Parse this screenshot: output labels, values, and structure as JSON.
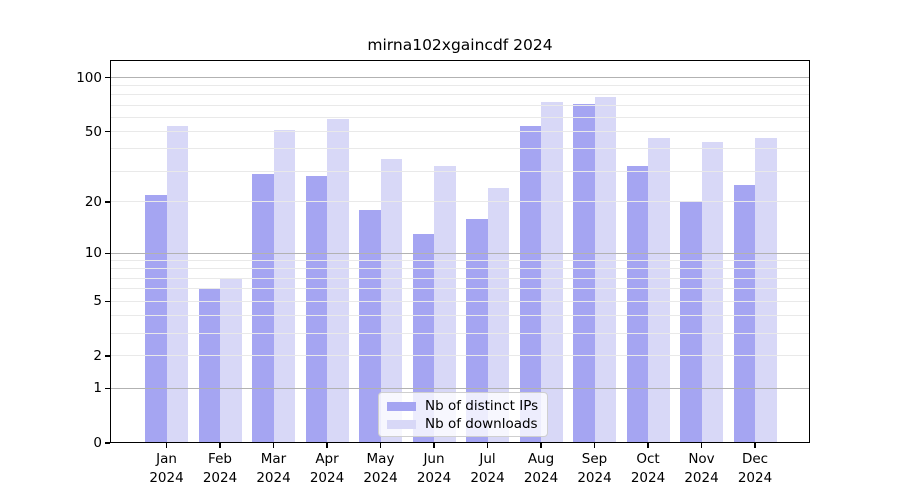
{
  "chart_data": {
    "type": "bar",
    "title": "mirna102xgaincdf 2024",
    "year": "2024",
    "categories": [
      "Jan",
      "Feb",
      "Mar",
      "Apr",
      "May",
      "Jun",
      "Jul",
      "Aug",
      "Sep",
      "Oct",
      "Nov",
      "Dec"
    ],
    "series": [
      {
        "name": "Nb of distinct IPs",
        "color": "#a5a5f2",
        "values": [
          22,
          6,
          29,
          28,
          18,
          13,
          16,
          54,
          71,
          32,
          20,
          25
        ]
      },
      {
        "name": "Nb of downloads",
        "color": "#d8d8f7",
        "values": [
          54,
          7,
          51,
          59,
          35,
          32,
          24,
          73,
          78,
          46,
          44,
          46
        ]
      }
    ],
    "yscale": "log1p",
    "ylim": [
      0,
      125
    ],
    "yticks": [
      0,
      1,
      2,
      5,
      10,
      20,
      50,
      100
    ],
    "grid_minor": [
      2,
      3,
      4,
      5,
      6,
      7,
      8,
      9,
      20,
      30,
      40,
      50,
      60,
      70,
      80,
      90
    ],
    "grid_major": [
      1,
      10,
      100
    ],
    "legend_position": "lower center",
    "colors": {
      "grid_minor": "#e9e9e9",
      "grid_major": "#b2b2b2",
      "axis": "#000000",
      "background": "#ffffff"
    }
  }
}
